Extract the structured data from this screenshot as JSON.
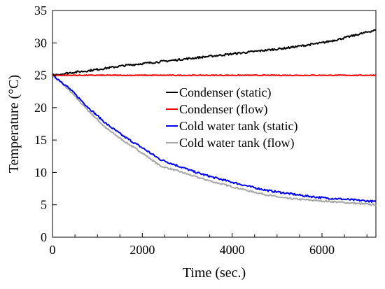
{
  "chart_data": {
    "type": "line",
    "title": "",
    "xlabel": "Time (sec.)",
    "ylabel": "Temperature (°C)",
    "xlim": [
      0,
      7200
    ],
    "ylim": [
      0,
      35
    ],
    "xticks": [
      0,
      2000,
      4000,
      6000
    ],
    "yticks": [
      0,
      5,
      10,
      15,
      20,
      25,
      30,
      35
    ],
    "grid": false,
    "legend_position": "center",
    "series": [
      {
        "name": "Condenser (static)",
        "color": "#000000",
        "x": [
          0,
          400,
          800,
          1200,
          1600,
          2000,
          2400,
          2800,
          3200,
          3600,
          4000,
          4400,
          4800,
          5200,
          5600,
          6000,
          6400,
          6800,
          7200
        ],
        "y": [
          25.0,
          25.4,
          25.7,
          26.1,
          26.5,
          26.8,
          27.1,
          27.4,
          27.7,
          28.0,
          28.3,
          28.6,
          28.9,
          29.2,
          29.6,
          30.0,
          30.6,
          31.3,
          32.0
        ]
      },
      {
        "name": "Condenser (flow)",
        "color": "#ff0000",
        "x": [
          0,
          1000,
          2000,
          3000,
          4000,
          5000,
          6000,
          7200
        ],
        "y": [
          25.0,
          25.0,
          25.0,
          25.0,
          25.0,
          25.0,
          25.0,
          25.0
        ]
      },
      {
        "name": "Cold water tank (static)",
        "color": "#0000ff",
        "x": [
          0,
          200,
          400,
          800,
          1200,
          1600,
          2000,
          2400,
          2800,
          3200,
          3600,
          4000,
          4400,
          4800,
          5200,
          5600,
          6000,
          6400,
          6800,
          7200
        ],
        "y": [
          25.0,
          24.0,
          22.8,
          20.0,
          17.5,
          15.5,
          13.8,
          12.0,
          11.0,
          10.0,
          9.2,
          8.5,
          7.8,
          7.2,
          6.8,
          6.4,
          6.1,
          5.9,
          5.7,
          5.5
        ]
      },
      {
        "name": "Cold water tank (flow)",
        "color": "#a6a6a6",
        "x": [
          0,
          200,
          400,
          800,
          1200,
          1600,
          2000,
          2400,
          2800,
          3200,
          3600,
          4000,
          4400,
          4800,
          5200,
          5600,
          6000,
          6400,
          6800,
          7200
        ],
        "y": [
          25.0,
          23.8,
          22.5,
          19.5,
          16.8,
          14.8,
          13.0,
          11.0,
          10.2,
          9.3,
          8.5,
          7.8,
          7.1,
          6.5,
          6.0,
          5.8,
          5.6,
          5.4,
          5.2,
          5.0
        ]
      }
    ]
  }
}
